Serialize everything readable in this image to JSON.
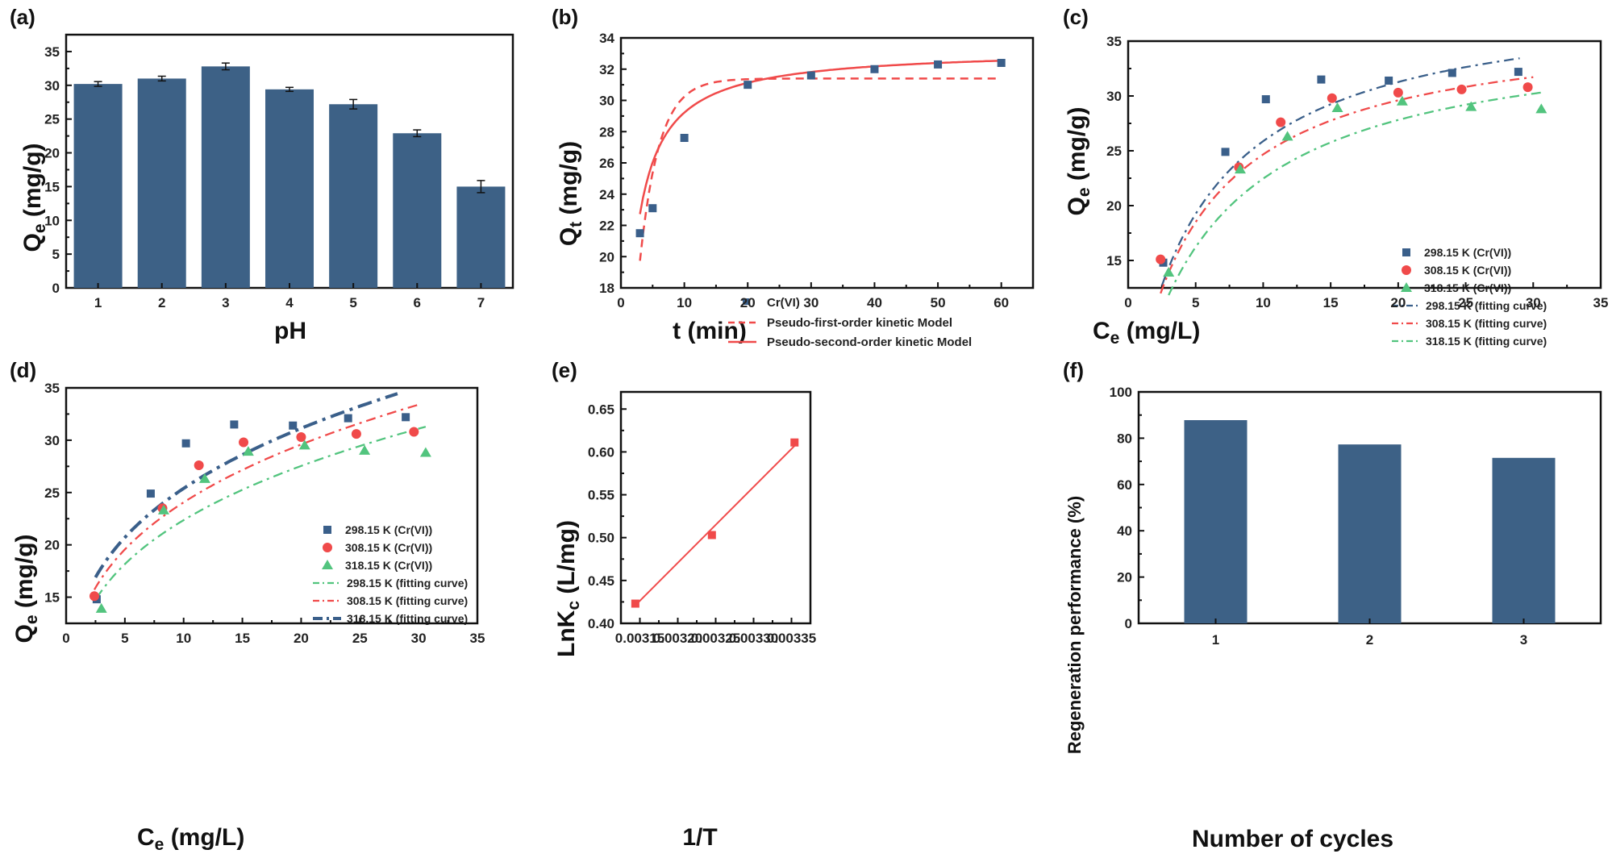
{
  "colors": {
    "bar": "#3d6186",
    "blue": "#3a5f8a",
    "red": "#f04a4a",
    "green": "#52c47e",
    "axis": "#111111"
  },
  "chart_data": [
    {
      "id": "a",
      "panel_label": "(a)",
      "type": "bar",
      "xlabel": "pH",
      "ylabel_main": "Q",
      "ylabel_sub": "e",
      "ylabel_rest": " (mg/g)",
      "categories": [
        "1",
        "2",
        "3",
        "4",
        "5",
        "6",
        "7"
      ],
      "values": [
        30.2,
        31.0,
        32.8,
        29.4,
        27.2,
        22.9,
        15.0
      ],
      "errors": [
        0.35,
        0.35,
        0.5,
        0.3,
        0.7,
        0.5,
        0.9
      ],
      "ylim": [
        0,
        37.5
      ],
      "yticks": [
        0,
        5,
        10,
        15,
        20,
        25,
        30,
        35
      ]
    },
    {
      "id": "b",
      "panel_label": "(b)",
      "type": "line",
      "xlabel": "t (min)",
      "ylabel_main": "Q",
      "ylabel_sub": "t",
      "ylabel_rest": " (mg/g)",
      "xlim": [
        0,
        65
      ],
      "ylim": [
        18,
        34
      ],
      "xticks": [
        0,
        10,
        20,
        30,
        40,
        50,
        60
      ],
      "yticks": [
        18,
        20,
        22,
        24,
        26,
        28,
        30,
        32,
        34
      ],
      "points": {
        "name": "Cr(VI)",
        "x": [
          3,
          5,
          10,
          20,
          30,
          40,
          50,
          60
        ],
        "y": [
          21.5,
          23.1,
          27.6,
          31.0,
          31.6,
          32.0,
          32.3,
          32.4
        ]
      },
      "series": [
        {
          "name": "Pseudo-first-order kinetic Model",
          "style": "dashed",
          "model": "pfo",
          "qe": 31.4,
          "k": 0.33,
          "t0": 2.4,
          "t1": 60
        },
        {
          "name": "Pseudo-second-order kinetic Model",
          "style": "solid",
          "model": "pso",
          "qe": 33.3,
          "k": 0.0215,
          "t0": 2.6,
          "t1": 60
        }
      ]
    },
    {
      "id": "c",
      "panel_label": "(c)",
      "type": "scatter",
      "xlabel_main": "C",
      "xlabel_sub": "e",
      "xlabel_rest": " (mg/L)",
      "ylabel_main": "Q",
      "ylabel_sub": "e",
      "ylabel_rest": " (mg/g)",
      "xlim": [
        0,
        35
      ],
      "ylim": [
        12.5,
        35
      ],
      "xticks": [
        0,
        5,
        10,
        15,
        20,
        25,
        30,
        35
      ],
      "yticks": [
        15,
        20,
        25,
        30,
        35
      ],
      "scatter": [
        {
          "name": "298.15 K (Cr(VI))",
          "marker": "square",
          "color": "blue",
          "x": [
            2.6,
            7.2,
            10.2,
            14.3,
            19.3,
            24.0,
            28.9
          ],
          "y": [
            14.8,
            24.9,
            29.7,
            31.5,
            31.4,
            32.1,
            32.2
          ]
        },
        {
          "name": "308.15 K (Cr(VI))",
          "marker": "circle",
          "color": "red",
          "x": [
            2.4,
            8.2,
            11.3,
            15.1,
            20.0,
            24.7,
            29.6
          ],
          "y": [
            15.1,
            23.5,
            27.6,
            29.8,
            30.3,
            30.6,
            30.8
          ]
        },
        {
          "name": "318.15 K (Cr(VI))",
          "marker": "triangle",
          "color": "green",
          "x": [
            3.0,
            8.3,
            11.8,
            15.5,
            20.3,
            25.4,
            30.6
          ],
          "y": [
            13.9,
            23.3,
            26.3,
            28.9,
            29.5,
            29.0,
            28.8
          ]
        }
      ],
      "fits": [
        {
          "name": "298.15 K (fitting curve)",
          "color": "blue",
          "model": "langmuir",
          "qm": 39.5,
          "kl": 0.19,
          "x0": 2.5,
          "x1": 29.0
        },
        {
          "name": "308.15 K (fitting curve)",
          "color": "red",
          "model": "langmuir",
          "qm": 37.0,
          "kl": 0.2,
          "x0": 2.4,
          "x1": 30.0
        },
        {
          "name": "318.15 K (fitting curve)",
          "color": "green",
          "model": "langmuir",
          "qm": 36.5,
          "kl": 0.16,
          "x0": 3.0,
          "x1": 30.6
        }
      ]
    },
    {
      "id": "d",
      "panel_label": "(d)",
      "type": "scatter",
      "xlabel_main": "C",
      "xlabel_sub": "e",
      "xlabel_rest": " (mg/L)",
      "ylabel_main": "Q",
      "ylabel_sub": "e",
      "ylabel_rest": " (mg/g)",
      "xlim": [
        0,
        35
      ],
      "ylim": [
        12.5,
        35
      ],
      "xticks": [
        0,
        5,
        10,
        15,
        20,
        25,
        30,
        35
      ],
      "yticks": [
        15,
        20,
        25,
        30,
        35
      ],
      "scatter": [
        {
          "name": "298.15 K (Cr(VI))",
          "marker": "square",
          "color": "blue",
          "x": [
            2.6,
            7.2,
            10.2,
            14.3,
            19.3,
            24.0,
            28.9
          ],
          "y": [
            14.8,
            24.9,
            29.7,
            31.5,
            31.4,
            32.1,
            32.2
          ]
        },
        {
          "name": "308.15 K (Cr(VI))",
          "marker": "circle",
          "color": "red",
          "x": [
            2.4,
            8.2,
            11.3,
            15.1,
            20.0,
            24.7,
            29.6
          ],
          "y": [
            15.1,
            23.5,
            27.6,
            29.8,
            30.3,
            30.6,
            30.8
          ]
        },
        {
          "name": "318.15 K (Cr(VI))",
          "marker": "triangle",
          "color": "green",
          "x": [
            3.0,
            8.3,
            11.8,
            15.5,
            20.3,
            25.4,
            30.6
          ],
          "y": [
            13.9,
            23.3,
            26.3,
            28.9,
            29.5,
            29.0,
            28.8
          ]
        }
      ],
      "fits": [
        {
          "name": "298.15 K (fitting curve)",
          "color": "green",
          "model": "freundlich",
          "kf": 11.2,
          "n": 3.33,
          "x0": 2.6,
          "x1": 30.6
        },
        {
          "name": "308.15 K (fitting curve)",
          "color": "red",
          "model": "freundlich",
          "kf": 12.1,
          "n": 3.35,
          "x0": 2.4,
          "x1": 30.0
        },
        {
          "name": "318.15 K (fitting curve)",
          "color": "blue",
          "model": "freundlich",
          "kf": 12.9,
          "n": 3.4,
          "x0": 2.5,
          "x1": 28.2
        }
      ]
    },
    {
      "id": "e",
      "panel_label": "(e)",
      "type": "line",
      "xlabel": "1/T",
      "ylabel_main": "LnK",
      "ylabel_sub": "c",
      "ylabel_rest": " (L/mg)",
      "xlim": [
        0.003125,
        0.003375
      ],
      "ylim": [
        0.4,
        0.67
      ],
      "xticks": [
        0.00315,
        0.0032,
        0.00325,
        0.0033,
        0.00335
      ],
      "xtick_labels": [
        "0.00315",
        "0.00320",
        "0.00325",
        "0.00330",
        "0.00335"
      ],
      "yticks": [
        0.4,
        0.45,
        0.5,
        0.55,
        0.6,
        0.65
      ],
      "ytick_labels": [
        "0.40",
        "0.45",
        "0.50",
        "0.55",
        "0.60",
        "0.65"
      ],
      "points": {
        "x": [
          0.003144,
          0.003245,
          0.003354
        ],
        "y": [
          0.423,
          0.503,
          0.611
        ]
      },
      "fit": {
        "x": [
          0.003144,
          0.003354
        ],
        "y": [
          0.421,
          0.607
        ]
      }
    },
    {
      "id": "f",
      "panel_label": "(f)",
      "type": "bar",
      "xlabel": "Number of cycles",
      "ylabel": "Regeneration performance (%)",
      "categories": [
        "1",
        "2",
        "3"
      ],
      "values": [
        87.8,
        77.3,
        71.5
      ],
      "ylim": [
        0,
        100
      ],
      "yticks": [
        0,
        20,
        40,
        60,
        80,
        100
      ]
    }
  ]
}
